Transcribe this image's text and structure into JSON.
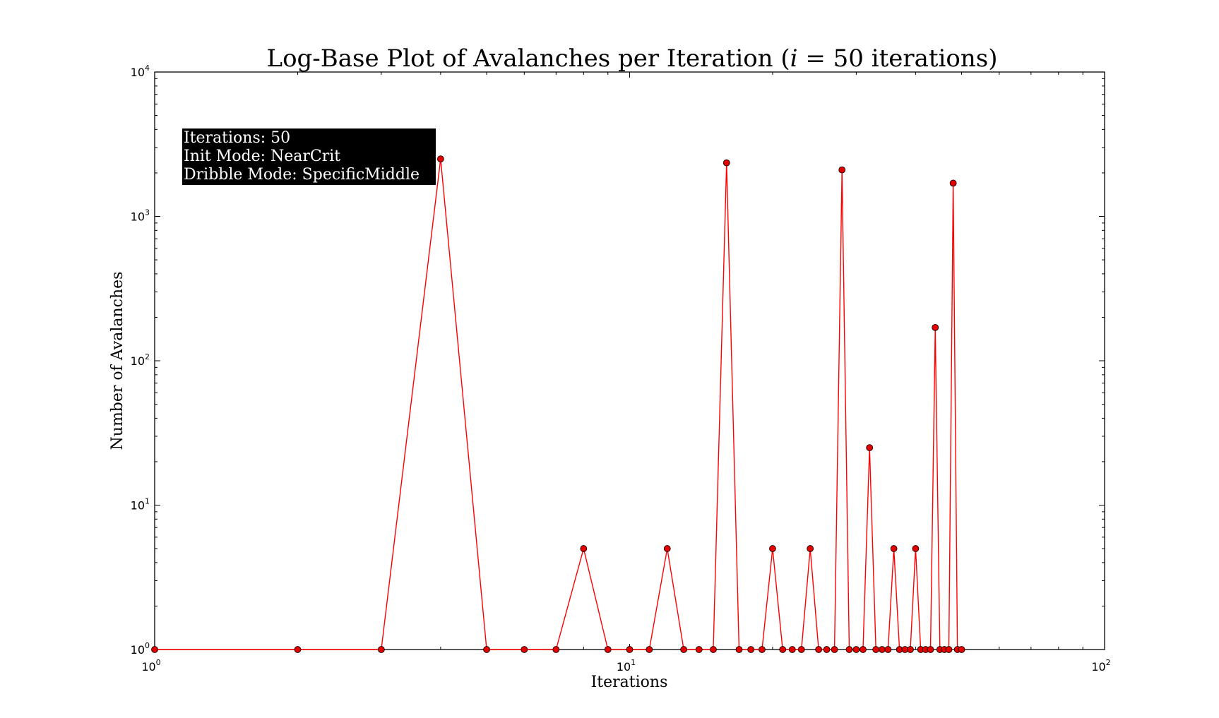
{
  "chart_data": {
    "type": "line",
    "title": "Log-Base Plot of Avalanches per Iteration (i = 50 iterations)",
    "title_parts": {
      "before": "Log-Base Plot of Avalanches per Iteration (",
      "var": "i",
      "eq": " = ",
      "num": "50",
      "after": " iterations)"
    },
    "xlabel": "Iterations",
    "ylabel": "Number of Avalanches",
    "xscale": "log",
    "yscale": "log",
    "xlim": [
      1,
      100
    ],
    "ylim": [
      1,
      10000
    ],
    "x_ticks": [
      {
        "base": "10",
        "exp": "0"
      },
      {
        "base": "10",
        "exp": "1"
      },
      {
        "base": "10",
        "exp": "2"
      }
    ],
    "y_ticks": [
      {
        "base": "10",
        "exp": "0"
      },
      {
        "base": "10",
        "exp": "1"
      },
      {
        "base": "10",
        "exp": "2"
      },
      {
        "base": "10",
        "exp": "3"
      },
      {
        "base": "10",
        "exp": "4"
      }
    ],
    "grid": false,
    "series": [
      {
        "color": "#ff0000",
        "marker_color": "#e00000",
        "x": [
          1,
          2,
          3,
          4,
          5,
          6,
          7,
          8,
          9,
          10,
          11,
          12,
          13,
          14,
          15,
          16,
          17,
          18,
          19,
          20,
          21,
          22,
          23,
          24,
          25,
          26,
          27,
          28,
          29,
          30,
          31,
          32,
          33,
          34,
          35,
          36,
          37,
          38,
          39,
          40,
          41,
          42,
          43,
          44,
          45,
          46,
          47,
          48,
          49,
          50
        ],
        "y": [
          1,
          1,
          1,
          2500,
          1,
          1,
          1,
          5,
          1,
          1,
          1,
          5,
          1,
          1,
          1,
          2350,
          1,
          1,
          1,
          5,
          1,
          1,
          1,
          5,
          1,
          1,
          1,
          2100,
          1,
          1,
          1,
          25,
          1,
          1,
          1,
          5,
          1,
          1,
          1,
          5,
          1,
          1,
          1,
          170,
          1,
          1,
          1,
          1700,
          1,
          1
        ]
      }
    ],
    "annotation": {
      "lines": [
        "Iterations: 50",
        "Init Mode: NearCrit",
        "Dribble Mode: SpecificMiddle"
      ],
      "background": "#000000",
      "text_color": "#ffffff"
    }
  }
}
